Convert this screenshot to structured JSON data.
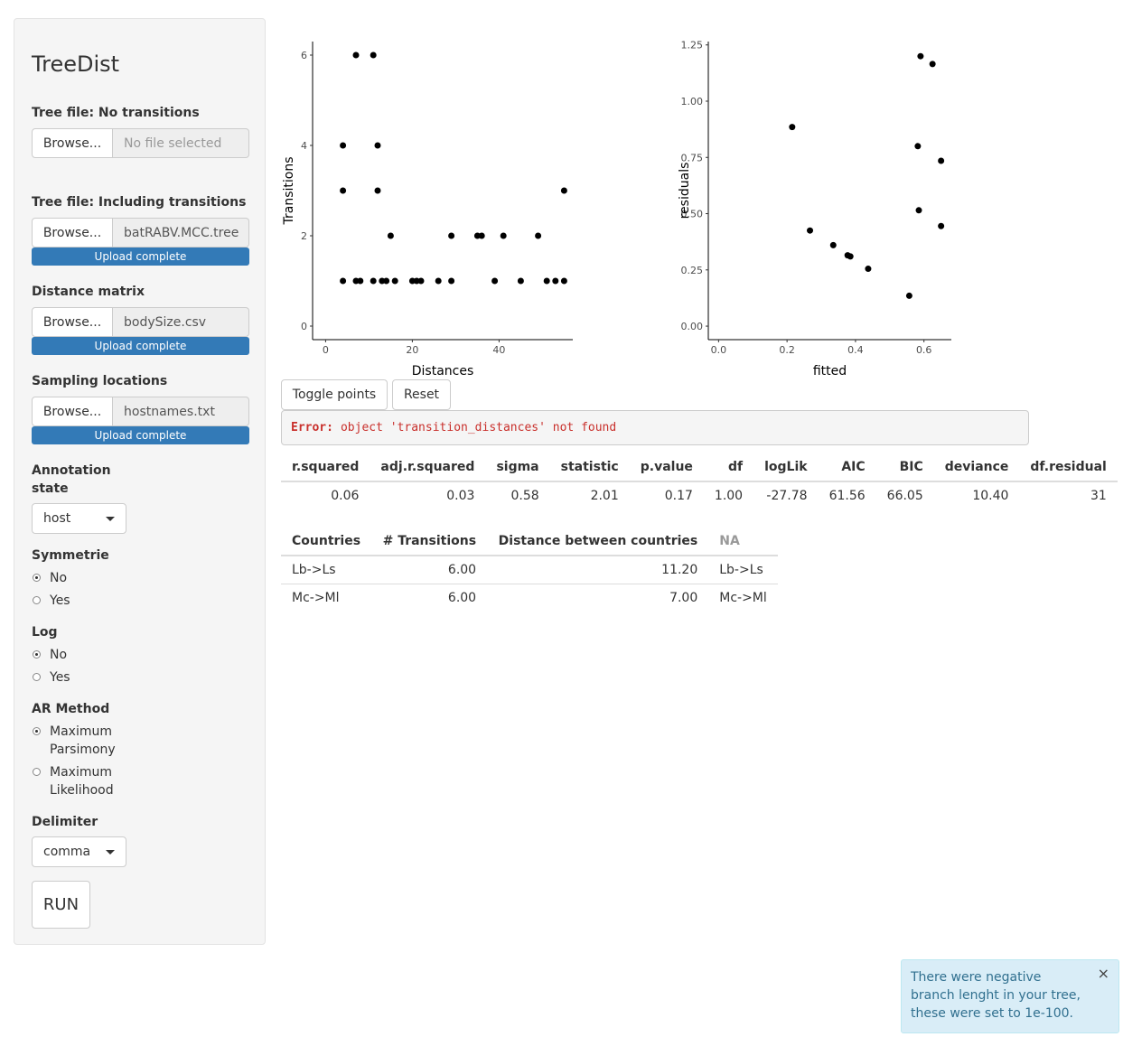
{
  "sidebar": {
    "title": "TreeDist",
    "tree_no_transitions": {
      "label": "Tree file: No transitions",
      "browse": "Browse...",
      "file": "No file selected"
    },
    "tree_with_transitions": {
      "label": "Tree file: Including transitions",
      "browse": "Browse...",
      "file": "batRABV.MCC.tree",
      "progress": "Upload complete"
    },
    "distance_matrix": {
      "label": "Distance matrix",
      "browse": "Browse...",
      "file": "bodySize.csv",
      "progress": "Upload complete"
    },
    "sampling_locations": {
      "label": "Sampling locations",
      "browse": "Browse...",
      "file": "hostnames.txt",
      "progress": "Upload complete"
    },
    "annotation_state": {
      "label_line1": "Annotation",
      "label_line2": "state",
      "value": "host"
    },
    "symmetrie": {
      "label": "Symmetrie",
      "options": [
        "No",
        "Yes"
      ],
      "selected": "No"
    },
    "log": {
      "label": "Log",
      "options": [
        "No",
        "Yes"
      ],
      "selected": "No"
    },
    "ar_method": {
      "label": "AR Method",
      "options": [
        [
          "Maximum",
          "Parsimony"
        ],
        [
          "Maximum",
          "Likelihood"
        ]
      ],
      "selected": 0
    },
    "delimiter": {
      "label": "Delimiter",
      "value": "comma"
    },
    "run_label": "RUN"
  },
  "chart_data": [
    {
      "type": "scatter",
      "xlabel": "Distances",
      "ylabel": "Transitions",
      "xlim": [
        -3,
        57
      ],
      "ylim": [
        -0.3,
        6.3
      ],
      "xticks": [
        0,
        20,
        40
      ],
      "yticks": [
        0,
        2,
        4,
        6
      ],
      "points": [
        [
          4,
          4
        ],
        [
          4,
          3
        ],
        [
          4,
          1
        ],
        [
          7,
          6
        ],
        [
          7,
          1
        ],
        [
          8,
          1
        ],
        [
          11,
          6
        ],
        [
          11,
          1
        ],
        [
          12,
          4
        ],
        [
          12,
          3
        ],
        [
          13,
          1
        ],
        [
          14,
          1
        ],
        [
          15,
          2
        ],
        [
          16,
          1
        ],
        [
          20,
          1
        ],
        [
          21,
          1
        ],
        [
          22,
          1
        ],
        [
          26,
          1
        ],
        [
          29,
          2
        ],
        [
          29,
          1
        ],
        [
          35,
          2
        ],
        [
          36,
          2
        ],
        [
          39,
          1
        ],
        [
          41,
          2
        ],
        [
          45,
          1
        ],
        [
          49,
          2
        ],
        [
          51,
          1
        ],
        [
          53,
          1
        ],
        [
          55,
          3
        ],
        [
          55,
          1
        ]
      ]
    },
    {
      "type": "scatter",
      "xlabel": "fitted",
      "ylabel": "residuals",
      "xlim": [
        -0.03,
        0.68
      ],
      "ylim": [
        -0.06,
        1.265
      ],
      "xticks": [
        0.0,
        0.2,
        0.4,
        0.6
      ],
      "yticks": [
        0.0,
        0.25,
        0.5,
        0.75,
        1.0,
        1.25
      ],
      "tick_labels_x": [
        "0.0",
        "0.2",
        "0.4",
        "0.6"
      ],
      "tick_labels_y": [
        "0.00",
        "0.25",
        "0.50",
        "0.75",
        "1.00",
        "1.25"
      ],
      "points": [
        [
          0.215,
          0.885
        ],
        [
          0.267,
          0.425
        ],
        [
          0.335,
          0.36
        ],
        [
          0.377,
          0.315
        ],
        [
          0.385,
          0.31
        ],
        [
          0.437,
          0.255
        ],
        [
          0.557,
          0.135
        ],
        [
          0.582,
          0.8
        ],
        [
          0.585,
          0.515
        ],
        [
          0.59,
          1.2
        ],
        [
          0.625,
          1.165
        ],
        [
          0.65,
          0.735
        ],
        [
          0.65,
          0.445
        ]
      ]
    }
  ],
  "buttons": {
    "toggle": "Toggle points",
    "reset": "Reset"
  },
  "error": {
    "prefix": "Error:",
    "message": "object 'transition_distances' not found"
  },
  "model_table": {
    "headers": [
      "r.squared",
      "adj.r.squared",
      "sigma",
      "statistic",
      "p.value",
      "df",
      "logLik",
      "AIC",
      "BIC",
      "deviance",
      "df.residual"
    ],
    "row": [
      "0.06",
      "0.03",
      "0.58",
      "2.01",
      "0.17",
      "1.00",
      "-27.78",
      "61.56",
      "66.05",
      "10.40",
      "31"
    ]
  },
  "transitions_table": {
    "headers": [
      "Countries",
      "# Transitions",
      "Distance between countries",
      "NA"
    ],
    "rows": [
      [
        "Lb->Ls",
        "6.00",
        "11.20",
        "Lb->Ls"
      ],
      [
        "Mc->Ml",
        "6.00",
        "7.00",
        "Mc->Ml"
      ]
    ]
  },
  "notification": {
    "message": "There were negative branch lenght in your tree, these were set to 1e-100.",
    "close": "×"
  }
}
